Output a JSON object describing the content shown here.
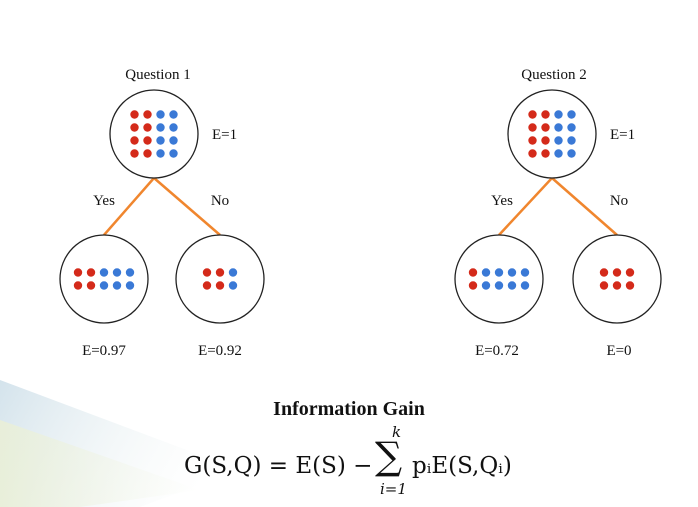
{
  "colors": {
    "red": "#d42a1a",
    "blue": "#3a79d6",
    "edge": "#f0862e",
    "circle_stroke": "#222222"
  },
  "trees": [
    {
      "question": "Question 1",
      "root": {
        "entropy": "E=1",
        "dots": {
          "red": 8,
          "blue": 8
        }
      },
      "yes": {
        "label": "Yes",
        "entropy": "E=0.97",
        "dots": {
          "red": 4,
          "blue": 6
        }
      },
      "no": {
        "label": "No",
        "entropy": "E=0.92",
        "dots": {
          "red": 4,
          "blue": 2
        }
      }
    },
    {
      "question": "Question 2",
      "root": {
        "entropy": "E=1",
        "dots": {
          "red": 8,
          "blue": 8
        }
      },
      "yes": {
        "label": "Yes",
        "entropy": "E=0.72",
        "dots": {
          "red": 2,
          "blue": 8
        }
      },
      "no": {
        "label": "No",
        "entropy": "E=0",
        "dots": {
          "red": 6,
          "blue": 0
        }
      }
    }
  ],
  "footer": {
    "title": "Information Gain",
    "formula_lhs": "G(S,Q) = E(S) − ",
    "sum_symbol": "∑",
    "sum_upper": "k",
    "sum_lower": "i=1",
    "formula_rhs": "pᵢE(S,Qᵢ)"
  }
}
